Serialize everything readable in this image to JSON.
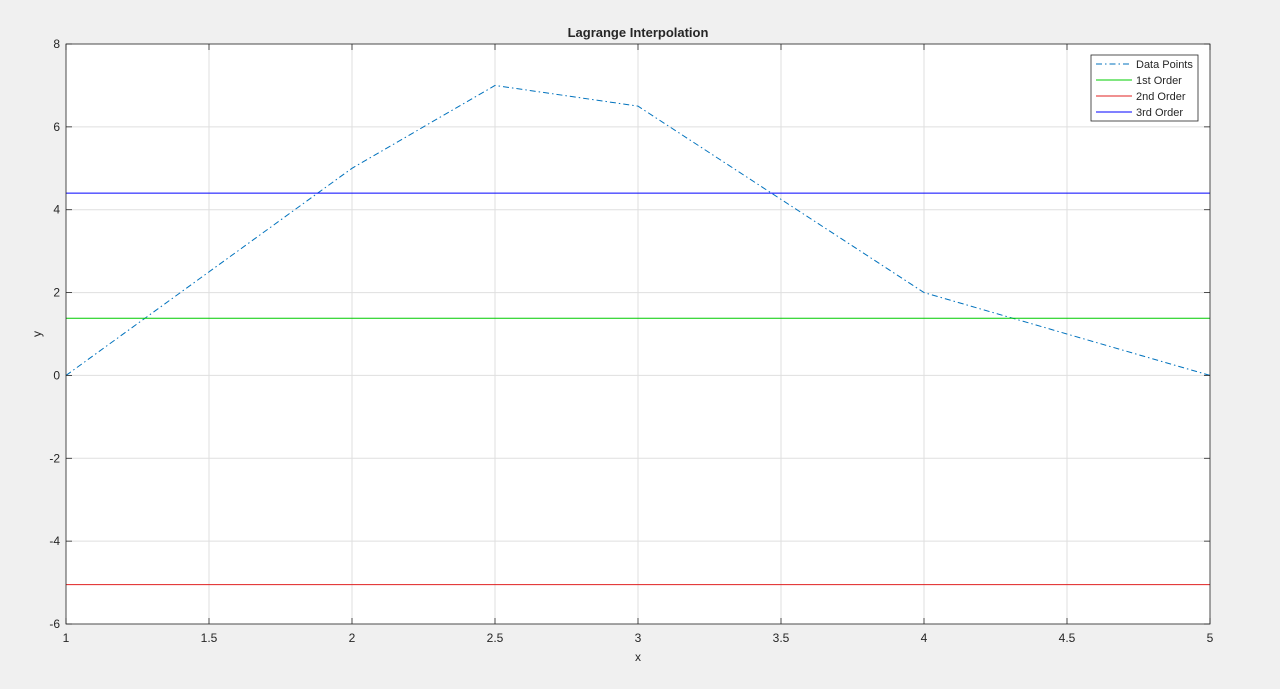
{
  "chart_data": {
    "type": "line",
    "title": "Lagrange Interpolation",
    "xlabel": "x",
    "ylabel": "y",
    "xlim": [
      1,
      5
    ],
    "ylim": [
      -6,
      8
    ],
    "xticks": [
      1,
      1.5,
      2,
      2.5,
      3,
      3.5,
      4,
      4.5,
      5
    ],
    "xtick_labels": [
      "1",
      "1.5",
      "2",
      "2.5",
      "3",
      "3.5",
      "4",
      "4.5",
      "5"
    ],
    "yticks": [
      -6,
      -4,
      -2,
      0,
      2,
      4,
      6,
      8
    ],
    "ytick_labels": [
      "-6",
      "-4",
      "-2",
      "0",
      "2",
      "4",
      "6",
      "8"
    ],
    "grid": true,
    "legend_location": "top-right",
    "series": [
      {
        "name": "Data Points",
        "color": "#0072bd",
        "line_style": "dash-dot",
        "x": [
          1,
          2,
          2.5,
          3,
          4,
          5
        ],
        "y": [
          0,
          5,
          7,
          6.5,
          2,
          0
        ]
      },
      {
        "name": "1st Order",
        "color": "#00cc00",
        "line_style": "solid",
        "x": [
          1,
          5
        ],
        "y": [
          1.38,
          1.38
        ]
      },
      {
        "name": "2nd Order",
        "color": "#e02020",
        "line_style": "solid",
        "x": [
          1,
          5
        ],
        "y": [
          -5.05,
          -5.05
        ]
      },
      {
        "name": "3rd Order",
        "color": "#0000ff",
        "line_style": "solid",
        "x": [
          1,
          5
        ],
        "y": [
          4.4,
          4.4
        ]
      }
    ]
  }
}
